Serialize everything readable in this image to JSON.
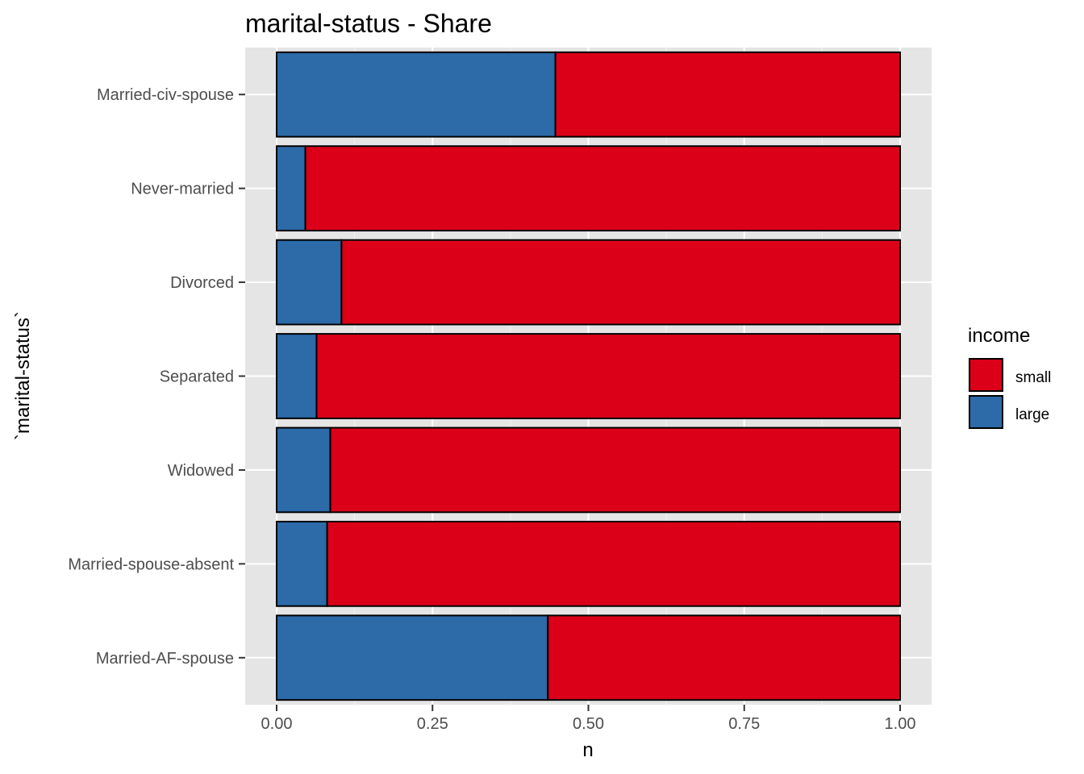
{
  "chart_data": {
    "type": "bar",
    "orientation": "horizontal",
    "stacked": true,
    "title": "marital-status - Share",
    "xlabel": "n",
    "ylabel": "`marital-status`",
    "xlim": [
      0,
      1
    ],
    "x_ticks": [
      "0.00",
      "0.25",
      "0.50",
      "0.75",
      "1.00"
    ],
    "x_tick_values": [
      0,
      0.25,
      0.5,
      0.75,
      1.0
    ],
    "categories": [
      "Married-civ-spouse",
      "Never-married",
      "Divorced",
      "Separated",
      "Widowed",
      "Married-spouse-absent",
      "Married-AF-spouse"
    ],
    "series": [
      {
        "name": "large",
        "color": "#2c6aa8",
        "values": [
          0.447,
          0.046,
          0.104,
          0.064,
          0.086,
          0.081,
          0.435
        ]
      },
      {
        "name": "small",
        "color": "#db0018",
        "values": [
          0.553,
          0.954,
          0.896,
          0.936,
          0.914,
          0.919,
          0.565
        ]
      }
    ],
    "legend": {
      "title": "income",
      "position": "right",
      "entries": [
        {
          "label": "small",
          "color": "#db0018"
        },
        {
          "label": "large",
          "color": "#2c6aa8"
        }
      ]
    },
    "grid": true,
    "panel_background": "#e5e5e5"
  }
}
